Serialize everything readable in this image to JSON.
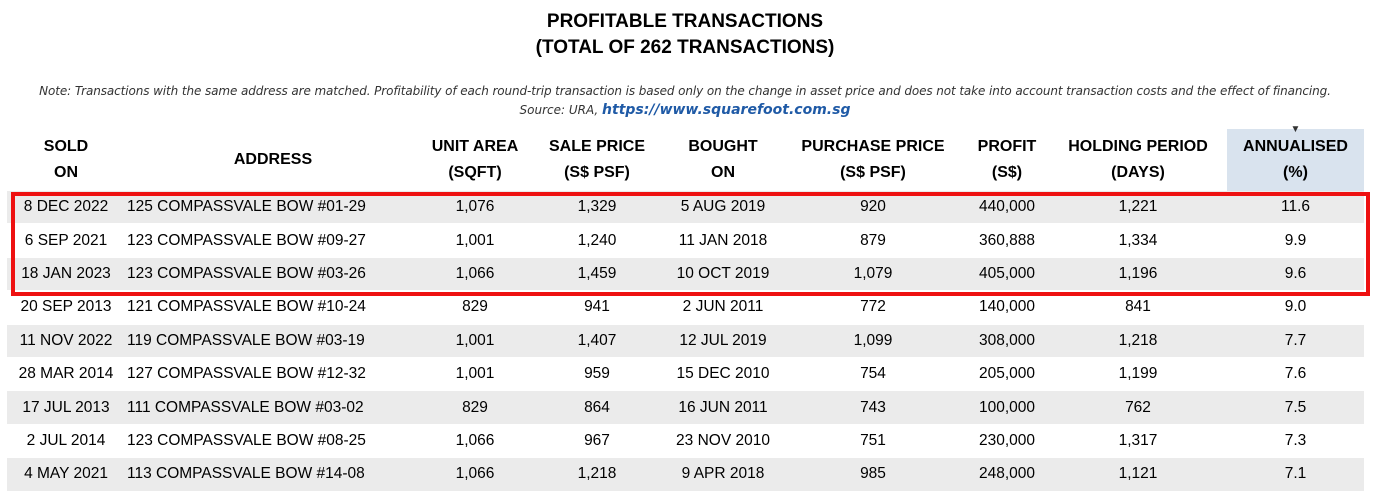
{
  "title_line1": "PROFITABLE TRANSACTIONS",
  "title_line2": "(TOTAL OF 262 TRANSACTIONS)",
  "note": "Note: Transactions with the same address are matched. Profitability of each round-trip transaction is based only on the change in asset price and does not take into account transaction costs and the effect of financing.",
  "source_label": "Source: URA,",
  "source_url": "https://www.squarefoot.com.sg",
  "headers": [
    {
      "line1": "SOLD",
      "line2": "ON"
    },
    {
      "line1": "ADDRESS",
      "line2": ""
    },
    {
      "line1": "UNIT AREA",
      "line2": "(SQFT)"
    },
    {
      "line1": "SALE PRICE",
      "line2": "(S$ PSF)"
    },
    {
      "line1": "BOUGHT",
      "line2": "ON"
    },
    {
      "line1": "PURCHASE PRICE",
      "line2": "(S$ PSF)"
    },
    {
      "line1": "PROFIT",
      "line2": "(S$)"
    },
    {
      "line1": "HOLDING PERIOD",
      "line2": "(DAYS)"
    },
    {
      "line1": "ANNUALISED",
      "line2": "(%)"
    }
  ],
  "sort_indicator": "▼",
  "sorted_column_color": "#d9e3ee",
  "highlight_color": "#ee1111",
  "highlighted_rows": 3,
  "rows": [
    [
      "8 DEC 2022",
      "125 COMPASSVALE BOW #01-29",
      "1,076",
      "1,329",
      "5 AUG 2019",
      "920",
      "440,000",
      "1,221",
      "11.6"
    ],
    [
      "6 SEP 2021",
      "123 COMPASSVALE BOW #09-27",
      "1,001",
      "1,240",
      "11 JAN 2018",
      "879",
      "360,888",
      "1,334",
      "9.9"
    ],
    [
      "18 JAN 2023",
      "123 COMPASSVALE BOW #03-26",
      "1,066",
      "1,459",
      "10 OCT 2019",
      "1,079",
      "405,000",
      "1,196",
      "9.6"
    ],
    [
      "20 SEP 2013",
      "121 COMPASSVALE BOW #10-24",
      "829",
      "941",
      "2 JUN 2011",
      "772",
      "140,000",
      "841",
      "9.0"
    ],
    [
      "11 NOV 2022",
      "119 COMPASSVALE BOW #03-19",
      "1,001",
      "1,407",
      "12 JUL 2019",
      "1,099",
      "308,000",
      "1,218",
      "7.7"
    ],
    [
      "28 MAR 2014",
      "127 COMPASSVALE BOW #12-32",
      "1,001",
      "959",
      "15 DEC 2010",
      "754",
      "205,000",
      "1,199",
      "7.6"
    ],
    [
      "17 JUL 2013",
      "111 COMPASSVALE BOW #03-02",
      "829",
      "864",
      "16 JUN 2011",
      "743",
      "100,000",
      "762",
      "7.5"
    ],
    [
      "2 JUL 2014",
      "123 COMPASSVALE BOW #08-25",
      "1,066",
      "967",
      "23 NOV 2010",
      "751",
      "230,000",
      "1,317",
      "7.3"
    ],
    [
      "4 MAY 2021",
      "113 COMPASSVALE BOW #14-08",
      "1,066",
      "1,218",
      "9 APR 2018",
      "985",
      "248,000",
      "1,121",
      "7.1"
    ]
  ]
}
